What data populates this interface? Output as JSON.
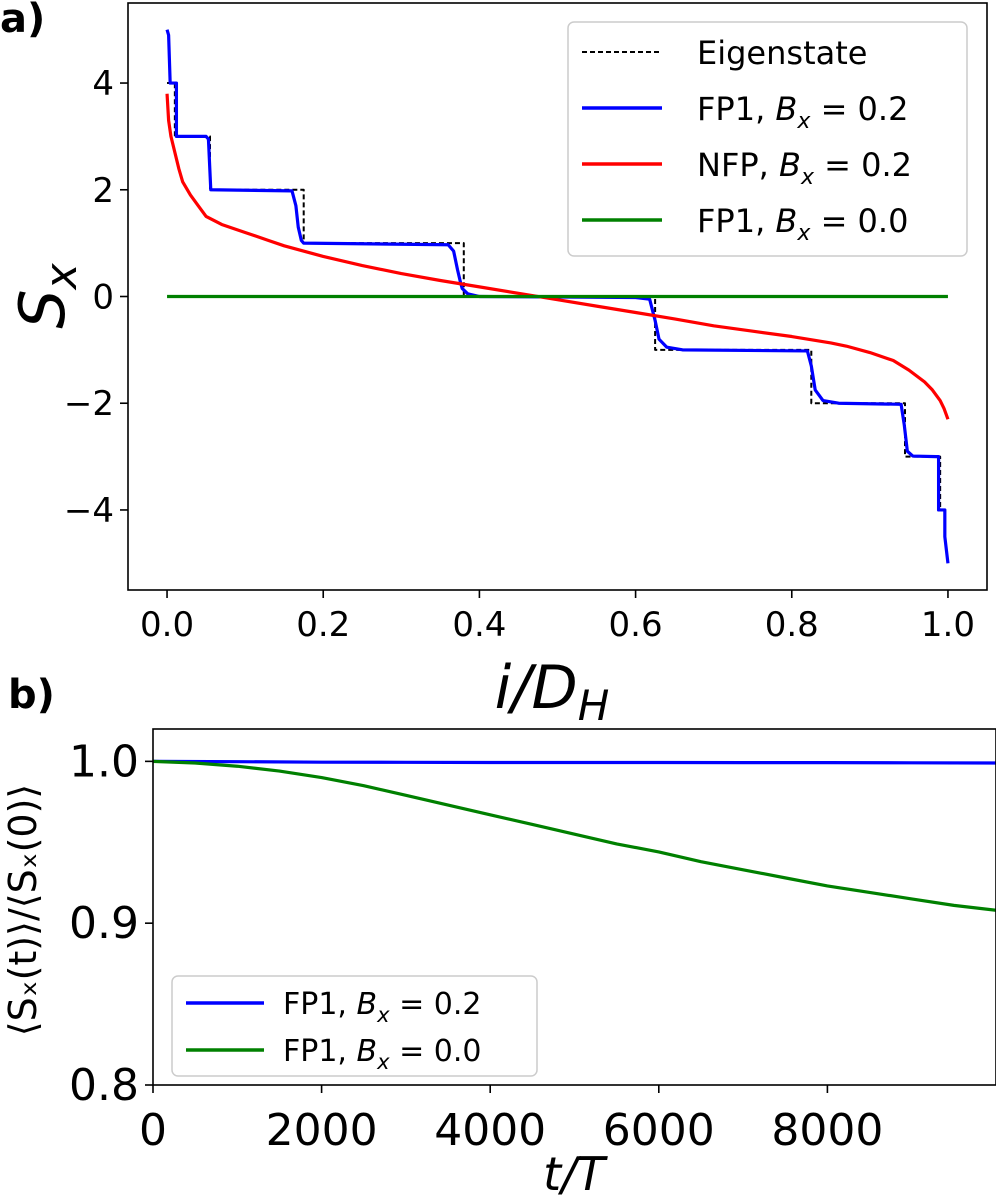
{
  "chart_data": [
    {
      "panel_label": "a)",
      "type": "line",
      "xlabel": "i/D",
      "xlabel_sub": "H",
      "ylabel": "S",
      "ylabel_sub": "x",
      "xlim": [
        -0.05,
        1.05
      ],
      "ylim": [
        -5.5,
        5.5
      ],
      "xticks": [
        0.0,
        0.2,
        0.4,
        0.6,
        0.8,
        1.0
      ],
      "xtick_labels": [
        "0.0",
        "0.2",
        "0.4",
        "0.6",
        "0.8",
        "1.0"
      ],
      "yticks": [
        4,
        2,
        0,
        -2,
        -4
      ],
      "ytick_labels": [
        "4",
        "2",
        "0",
        "−2",
        "−4"
      ],
      "grid": false,
      "legend_position": "top-right",
      "series": [
        {
          "name": "Eigenstate",
          "color": "#000000",
          "style": "dashed",
          "x": [
            0.0,
            0.01,
            0.01,
            0.055,
            0.055,
            0.175,
            0.175,
            0.38,
            0.38,
            0.62,
            0.625,
            0.625,
            0.825,
            0.825,
            0.945,
            0.945,
            0.99,
            0.99,
            1.0
          ],
          "y": [
            4.0,
            4.0,
            3.0,
            3.0,
            2.0,
            2.0,
            1.0,
            1.0,
            0.0,
            0.0,
            0.0,
            -1.0,
            -1.0,
            -2.0,
            -2.0,
            -3.0,
            -3.0,
            -4.0,
            -4.0
          ]
        },
        {
          "name": "FP1, B = 0.2",
          "name_main": "FP1, ",
          "name_var": "B",
          "name_sub": "x",
          "name_val": " = 0.2",
          "color": "#0000ff",
          "style": "solid",
          "x": [
            0.0,
            0.002,
            0.004,
            0.004,
            0.008,
            0.012,
            0.012,
            0.05,
            0.053,
            0.056,
            0.056,
            0.16,
            0.165,
            0.168,
            0.172,
            0.175,
            0.36,
            0.367,
            0.372,
            0.376,
            0.378,
            0.385,
            0.4,
            0.6,
            0.618,
            0.625,
            0.63,
            0.64,
            0.66,
            0.82,
            0.825,
            0.83,
            0.84,
            0.86,
            0.94,
            0.944,
            0.948,
            0.955,
            0.985,
            0.988,
            0.988,
            0.996,
            0.996,
            1.0
          ],
          "y": [
            5.0,
            4.9,
            4.0,
            4.0,
            4.0,
            4.0,
            3.0,
            3.0,
            2.95,
            2.0,
            2.0,
            1.98,
            1.7,
            1.3,
            1.05,
            1.0,
            0.97,
            0.85,
            0.5,
            0.25,
            0.15,
            0.05,
            0.0,
            -0.02,
            -0.05,
            -0.45,
            -0.8,
            -0.95,
            -1.0,
            -1.02,
            -1.3,
            -1.75,
            -1.95,
            -2.0,
            -2.02,
            -2.4,
            -2.9,
            -2.99,
            -3.0,
            -3.0,
            -4.0,
            -4.0,
            -4.5,
            -5.0
          ]
        },
        {
          "name": "NFP, B = 0.2",
          "name_main": "NFP, ",
          "name_var": "B",
          "name_sub": "x",
          "name_val": " = 0.2",
          "color": "#ff0000",
          "style": "solid",
          "x": [
            0.0,
            0.002,
            0.005,
            0.01,
            0.015,
            0.02,
            0.03,
            0.04,
            0.05,
            0.07,
            0.1,
            0.13,
            0.15,
            0.2,
            0.25,
            0.3,
            0.35,
            0.4,
            0.45,
            0.5,
            0.55,
            0.6,
            0.65,
            0.7,
            0.75,
            0.8,
            0.85,
            0.87,
            0.9,
            0.93,
            0.95,
            0.97,
            0.98,
            0.99,
            0.995,
            1.0
          ],
          "y": [
            3.8,
            3.3,
            3.0,
            2.7,
            2.4,
            2.15,
            1.9,
            1.7,
            1.5,
            1.35,
            1.2,
            1.05,
            0.95,
            0.75,
            0.58,
            0.43,
            0.3,
            0.18,
            0.06,
            -0.06,
            -0.18,
            -0.3,
            -0.42,
            -0.55,
            -0.65,
            -0.75,
            -0.87,
            -0.93,
            -1.05,
            -1.2,
            -1.38,
            -1.6,
            -1.75,
            -1.95,
            -2.1,
            -2.3
          ]
        },
        {
          "name": "FP1, B = 0.0",
          "name_main": "FP1, ",
          "name_var": "B",
          "name_sub": "x",
          "name_val": " = 0.0",
          "color": "#008000",
          "style": "solid",
          "x": [
            0.0,
            1.0
          ],
          "y": [
            0.0,
            0.0
          ]
        }
      ]
    },
    {
      "panel_label": "b)",
      "type": "line",
      "xlabel": "t/T",
      "ylabel": "⟨Sₓ(t)⟩/⟨Sₓ(0)⟩",
      "xlim": [
        0,
        10000
      ],
      "ylim": [
        0.8,
        1.02
      ],
      "xticks": [
        0,
        2000,
        4000,
        6000,
        8000
      ],
      "xtick_labels": [
        "0",
        "2000",
        "4000",
        "6000",
        "8000"
      ],
      "yticks": [
        1.0,
        0.9,
        0.8
      ],
      "ytick_labels": [
        "1.0",
        "0.9",
        "0.8"
      ],
      "grid": false,
      "legend_position": "bottom-left",
      "series": [
        {
          "name": "FP1, B = 0.2",
          "name_main": "FP1, ",
          "name_var": "B",
          "name_sub": "x",
          "name_val": " = 0.2",
          "color": "#0000ff",
          "x": [
            0,
            1000,
            2000,
            3000,
            4000,
            5000,
            6000,
            7000,
            8000,
            9000,
            10000
          ],
          "y": [
            1.0,
            0.9998,
            0.9995,
            0.9994,
            0.9993,
            0.9993,
            0.9993,
            0.9992,
            0.9992,
            0.9991,
            0.999
          ]
        },
        {
          "name": "FP1, B = 0.0",
          "name_main": "FP1, ",
          "name_var": "B",
          "name_sub": "x",
          "name_val": " = 0.0",
          "color": "#008000",
          "x": [
            0,
            500,
            1000,
            1500,
            2000,
            2500,
            3000,
            3500,
            4000,
            4500,
            5000,
            5500,
            6000,
            6500,
            7000,
            7500,
            8000,
            8500,
            9000,
            9500,
            10000
          ],
          "y": [
            1.0,
            0.999,
            0.997,
            0.994,
            0.99,
            0.985,
            0.979,
            0.973,
            0.967,
            0.961,
            0.955,
            0.949,
            0.944,
            0.938,
            0.933,
            0.928,
            0.923,
            0.919,
            0.915,
            0.911,
            0.908
          ]
        }
      ]
    }
  ]
}
